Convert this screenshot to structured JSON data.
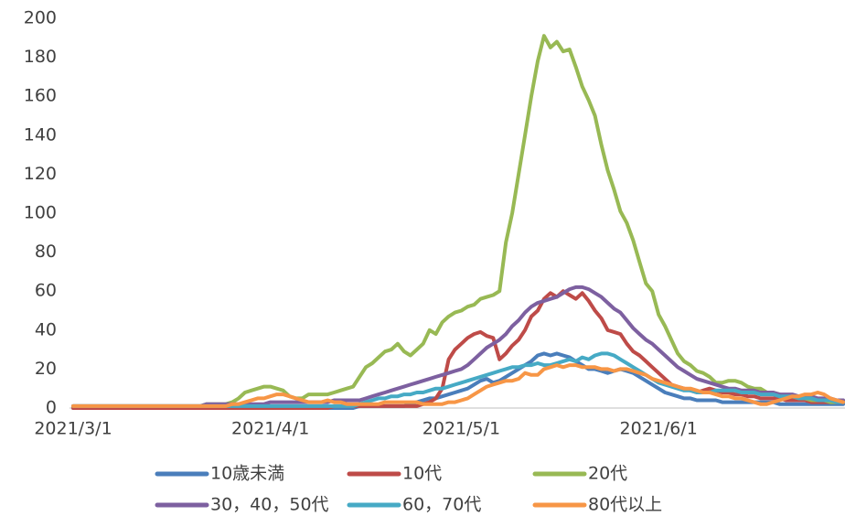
{
  "chart_data": {
    "type": "line",
    "categories": [
      "2021/3/1",
      null,
      null,
      null,
      null,
      null,
      null,
      null,
      null,
      null,
      null,
      null,
      null,
      null,
      null,
      null,
      null,
      null,
      null,
      null,
      null,
      null,
      null,
      null,
      null,
      null,
      null,
      null,
      null,
      null,
      null,
      "2021/4/1",
      null,
      null,
      null,
      null,
      null,
      null,
      null,
      null,
      null,
      null,
      null,
      null,
      null,
      null,
      null,
      null,
      null,
      null,
      null,
      null,
      null,
      null,
      null,
      null,
      null,
      null,
      null,
      null,
      null,
      "2021/5/1",
      null,
      null,
      null,
      null,
      null,
      null,
      null,
      null,
      null,
      null,
      null,
      null,
      null,
      null,
      null,
      null,
      null,
      null,
      null,
      null,
      null,
      null,
      null,
      null,
      null,
      null,
      null,
      null,
      null,
      null,
      "2021/6/1",
      null,
      null,
      null,
      null,
      null,
      null,
      null,
      null,
      null,
      null,
      null,
      null,
      null,
      null,
      null,
      null,
      null,
      null,
      null,
      null,
      null,
      null,
      null,
      null,
      null,
      null,
      null,
      null,
      null
    ],
    "series": [
      {
        "name": "10歳未満",
        "color": "#4a7ebb",
        "values": [
          0,
          0,
          0,
          0,
          0,
          0,
          0,
          0,
          0,
          0,
          0,
          0,
          0,
          0,
          0,
          0,
          0,
          0,
          0,
          0,
          0,
          0,
          0,
          0,
          0,
          0,
          0,
          0,
          0,
          0,
          0,
          0,
          0,
          0,
          0,
          0,
          0,
          0,
          0,
          0,
          0,
          0,
          0,
          0,
          0,
          1,
          1,
          1,
          1,
          1,
          1,
          1,
          1,
          2,
          3,
          4,
          5,
          5,
          6,
          7,
          8,
          9,
          10,
          12,
          14,
          15,
          13,
          14,
          16,
          18,
          20,
          22,
          24,
          27,
          28,
          27,
          28,
          27,
          26,
          24,
          22,
          20,
          20,
          19,
          18,
          19,
          20,
          19,
          18,
          16,
          14,
          12,
          10,
          8,
          7,
          6,
          5,
          5,
          4,
          4,
          4,
          4,
          3,
          3,
          3,
          3,
          3,
          3,
          3,
          3,
          3,
          2,
          2,
          2,
          2,
          2,
          2,
          2,
          2,
          2,
          2,
          2
        ]
      },
      {
        "name": "10代",
        "color": "#be4b48",
        "values": [
          0,
          0,
          0,
          0,
          0,
          0,
          0,
          0,
          0,
          0,
          0,
          0,
          0,
          0,
          0,
          0,
          0,
          0,
          0,
          0,
          0,
          0,
          0,
          0,
          0,
          0,
          0,
          0,
          0,
          0,
          0,
          0,
          0,
          0,
          0,
          0,
          0,
          0,
          0,
          0,
          0,
          1,
          1,
          1,
          1,
          1,
          1,
          1,
          1,
          1,
          1,
          1,
          1,
          1,
          1,
          2,
          3,
          5,
          10,
          25,
          30,
          33,
          36,
          38,
          39,
          37,
          36,
          25,
          28,
          32,
          35,
          40,
          47,
          50,
          56,
          59,
          57,
          60,
          58,
          56,
          59,
          55,
          50,
          46,
          40,
          39,
          38,
          33,
          29,
          27,
          24,
          21,
          18,
          15,
          12,
          11,
          10,
          9,
          8,
          9,
          10,
          9,
          8,
          8,
          7,
          7,
          6,
          6,
          5,
          5,
          5,
          5,
          4,
          4,
          4,
          4,
          3,
          3,
          3,
          3,
          3,
          3
        ]
      },
      {
        "name": "20代",
        "color": "#98b954",
        "values": [
          1,
          1,
          1,
          1,
          1,
          1,
          1,
          1,
          1,
          1,
          1,
          1,
          1,
          1,
          1,
          1,
          1,
          1,
          1,
          1,
          1,
          2,
          2,
          2,
          2,
          3,
          5,
          8,
          9,
          10,
          11,
          11,
          10,
          9,
          6,
          5,
          5,
          7,
          7,
          7,
          7,
          8,
          9,
          10,
          11,
          16,
          21,
          23,
          26,
          29,
          30,
          33,
          29,
          27,
          30,
          33,
          40,
          38,
          44,
          47,
          49,
          50,
          52,
          53,
          56,
          57,
          58,
          60,
          85,
          100,
          120,
          140,
          160,
          178,
          191,
          185,
          188,
          183,
          184,
          175,
          165,
          158,
          150,
          135,
          122,
          112,
          101,
          95,
          86,
          75,
          64,
          60,
          48,
          42,
          35,
          28,
          24,
          22,
          19,
          18,
          16,
          13,
          13,
          14,
          14,
          13,
          11,
          10,
          10,
          8,
          8,
          7,
          6,
          6,
          5,
          5,
          4,
          4,
          4,
          3,
          3,
          4
        ]
      },
      {
        "name": "30，40，50代",
        "color": "#7d60a0",
        "values": [
          1,
          1,
          1,
          1,
          1,
          1,
          1,
          1,
          1,
          1,
          1,
          1,
          1,
          1,
          1,
          1,
          1,
          1,
          1,
          1,
          1,
          2,
          2,
          2,
          2,
          2,
          2,
          2,
          2,
          2,
          2,
          3,
          3,
          3,
          3,
          3,
          3,
          3,
          3,
          3,
          3,
          4,
          4,
          4,
          4,
          4,
          5,
          6,
          7,
          8,
          9,
          10,
          11,
          12,
          13,
          14,
          15,
          16,
          17,
          18,
          19,
          20,
          22,
          25,
          28,
          31,
          33,
          35,
          38,
          42,
          45,
          49,
          52,
          54,
          55,
          56,
          57,
          59,
          61,
          62,
          62,
          61,
          59,
          57,
          54,
          51,
          49,
          45,
          41,
          38,
          35,
          33,
          30,
          27,
          24,
          21,
          19,
          17,
          15,
          14,
          13,
          12,
          11,
          10,
          10,
          9,
          9,
          9,
          8,
          8,
          8,
          7,
          7,
          7,
          6,
          6,
          6,
          5,
          5,
          5,
          4,
          4
        ]
      },
      {
        "name": "60，70代",
        "color": "#46aac5",
        "values": [
          1,
          1,
          1,
          1,
          1,
          1,
          1,
          1,
          1,
          1,
          1,
          1,
          1,
          1,
          1,
          1,
          1,
          1,
          1,
          1,
          1,
          1,
          1,
          1,
          1,
          1,
          1,
          1,
          1,
          1,
          1,
          1,
          1,
          1,
          1,
          1,
          1,
          1,
          1,
          1,
          1,
          1,
          1,
          1,
          1,
          2,
          3,
          4,
          5,
          5,
          6,
          6,
          7,
          7,
          8,
          8,
          9,
          10,
          10,
          11,
          12,
          13,
          14,
          15,
          16,
          17,
          18,
          19,
          20,
          21,
          21,
          22,
          22,
          23,
          22,
          22,
          23,
          24,
          25,
          24,
          26,
          25,
          27,
          28,
          28,
          27,
          25,
          23,
          21,
          19,
          17,
          15,
          13,
          12,
          11,
          10,
          9,
          9,
          8,
          8,
          8,
          9,
          9,
          9,
          9,
          8,
          8,
          8,
          7,
          7,
          7,
          6,
          6,
          6,
          5,
          5,
          5,
          4,
          4,
          4,
          3,
          3
        ]
      },
      {
        "name": "80代以上",
        "color": "#f79646",
        "values": [
          1,
          1,
          1,
          1,
          1,
          1,
          1,
          1,
          1,
          1,
          1,
          1,
          1,
          1,
          1,
          1,
          1,
          1,
          1,
          1,
          1,
          1,
          1,
          1,
          1,
          2,
          2,
          3,
          4,
          5,
          5,
          6,
          7,
          7,
          6,
          5,
          4,
          3,
          3,
          3,
          4,
          3,
          3,
          2,
          2,
          2,
          2,
          2,
          2,
          3,
          3,
          3,
          3,
          3,
          3,
          2,
          2,
          2,
          2,
          3,
          3,
          4,
          5,
          7,
          9,
          11,
          12,
          13,
          14,
          14,
          15,
          18,
          17,
          17,
          20,
          21,
          22,
          21,
          22,
          22,
          21,
          21,
          21,
          20,
          20,
          19,
          20,
          20,
          19,
          18,
          17,
          15,
          14,
          13,
          12,
          11,
          10,
          10,
          9,
          8,
          8,
          7,
          6,
          6,
          5,
          5,
          4,
          3,
          2,
          2,
          3,
          4,
          5,
          6,
          6,
          7,
          7,
          8,
          7,
          5,
          4,
          3
        ]
      }
    ],
    "ylim": [
      0,
      200
    ],
    "yticks": [
      0,
      20,
      40,
      60,
      80,
      100,
      120,
      140,
      160,
      180,
      200
    ],
    "grid": false
  }
}
